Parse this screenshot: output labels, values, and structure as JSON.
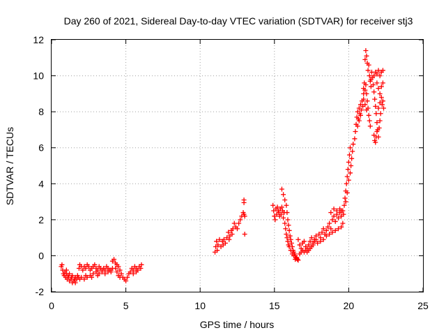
{
  "chart_data": {
    "type": "scatter",
    "title": "Day 260 of 2021, Sidereal Day-to-day VTEC variation (SDTVAR) for receiver stj3",
    "xlabel": "GPS time / hours",
    "ylabel": "SDTVAR / TECUs",
    "xlim": [
      0,
      25
    ],
    "ylim": [
      -2,
      12
    ],
    "xticks": [
      0,
      5,
      10,
      15,
      20,
      25
    ],
    "yticks": [
      -2,
      0,
      2,
      4,
      6,
      8,
      10,
      12
    ],
    "xtick_labels": [
      "0",
      "5",
      "10",
      "15",
      "20",
      "25"
    ],
    "ytick_labels": [
      "-2",
      "0",
      "2",
      "4",
      "6",
      "8",
      "10",
      "12"
    ],
    "grid": true,
    "marker": "+",
    "color": "#ff0000",
    "series": [
      {
        "name": "SDTVAR",
        "points": [
          [
            0.65,
            -0.6
          ],
          [
            0.7,
            -0.5
          ],
          [
            0.75,
            -0.8
          ],
          [
            0.8,
            -1.0
          ],
          [
            0.85,
            -1.1
          ],
          [
            0.9,
            -0.9
          ],
          [
            0.95,
            -1.2
          ],
          [
            1.0,
            -1.0
          ],
          [
            1.05,
            -1.3
          ],
          [
            1.1,
            -1.1
          ],
          [
            1.15,
            -1.2
          ],
          [
            1.2,
            -1.4
          ],
          [
            1.3,
            -1.3
          ],
          [
            1.35,
            -1.2
          ],
          [
            1.4,
            -1.5
          ],
          [
            1.5,
            -1.4
          ],
          [
            1.55,
            -1.3
          ],
          [
            1.6,
            -1.5
          ],
          [
            1.7,
            -1.3
          ],
          [
            1.75,
            -1.1
          ],
          [
            1.8,
            -1.2
          ],
          [
            1.9,
            -1.3
          ],
          [
            1.0,
            -0.8
          ],
          [
            1.2,
            -1.0
          ],
          [
            1.4,
            -1.1
          ],
          [
            1.6,
            -1.2
          ],
          [
            1.85,
            -0.7
          ],
          [
            1.9,
            -0.5
          ],
          [
            2.0,
            -0.6
          ],
          [
            2.1,
            -0.8
          ],
          [
            2.2,
            -0.6
          ],
          [
            2.3,
            -0.7
          ],
          [
            2.4,
            -0.5
          ],
          [
            2.5,
            -0.6
          ],
          [
            2.6,
            -0.8
          ],
          [
            2.7,
            -0.7
          ],
          [
            2.8,
            -0.6
          ],
          [
            2.9,
            -0.5
          ],
          [
            3.0,
            -0.7
          ],
          [
            3.1,
            -0.8
          ],
          [
            3.2,
            -0.6
          ],
          [
            3.3,
            -0.7
          ],
          [
            3.4,
            -0.8
          ],
          [
            3.5,
            -0.7
          ],
          [
            3.6,
            -0.8
          ],
          [
            3.7,
            -0.6
          ],
          [
            3.8,
            -0.7
          ],
          [
            3.9,
            -0.8
          ],
          [
            4.0,
            -0.9
          ],
          [
            4.1,
            -0.7
          ],
          [
            2.0,
            -1.2
          ],
          [
            2.2,
            -1.3
          ],
          [
            2.4,
            -1.2
          ],
          [
            2.6,
            -1.1
          ],
          [
            2.8,
            -1.0
          ],
          [
            3.0,
            -0.9
          ],
          [
            3.2,
            -1.0
          ],
          [
            3.4,
            -0.9
          ],
          [
            3.6,
            -1.0
          ],
          [
            3.8,
            -0.9
          ],
          [
            4.0,
            -0.8
          ],
          [
            2.3,
            -1.1
          ],
          [
            2.7,
            -1.2
          ],
          [
            3.1,
            -1.1
          ],
          [
            4.1,
            -0.3
          ],
          [
            4.2,
            -0.2
          ],
          [
            4.3,
            -0.4
          ],
          [
            4.4,
            -0.5
          ],
          [
            4.5,
            -0.6
          ],
          [
            4.6,
            -0.8
          ],
          [
            4.7,
            -1.0
          ],
          [
            4.8,
            -1.2
          ],
          [
            4.9,
            -1.3
          ],
          [
            5.0,
            -1.4
          ],
          [
            5.1,
            -1.2
          ],
          [
            5.2,
            -1.0
          ],
          [
            4.4,
            -0.9
          ],
          [
            4.5,
            -1.1
          ],
          [
            4.6,
            -1.2
          ],
          [
            4.3,
            -0.7
          ],
          [
            5.3,
            -0.9
          ],
          [
            5.4,
            -0.7
          ],
          [
            5.5,
            -0.8
          ],
          [
            5.6,
            -0.6
          ],
          [
            5.7,
            -0.7
          ],
          [
            5.8,
            -0.8
          ],
          [
            5.9,
            -0.6
          ],
          [
            6.0,
            -0.7
          ],
          [
            6.05,
            -0.5
          ],
          [
            5.5,
            -1.0
          ],
          [
            5.7,
            -0.9
          ],
          [
            11.0,
            0.2
          ],
          [
            11.05,
            0.5
          ],
          [
            11.1,
            0.8
          ],
          [
            11.15,
            0.3
          ],
          [
            11.2,
            0.6
          ],
          [
            11.3,
            0.9
          ],
          [
            11.4,
            0.5
          ],
          [
            11.5,
            0.8
          ],
          [
            11.55,
            0.6
          ],
          [
            11.6,
            0.9
          ],
          [
            11.7,
            0.7
          ],
          [
            11.8,
            1.0
          ],
          [
            11.9,
            1.3
          ],
          [
            12.0,
            1.1
          ],
          [
            12.1,
            1.4
          ],
          [
            12.2,
            1.5
          ],
          [
            12.3,
            1.8
          ],
          [
            12.4,
            1.6
          ],
          [
            11.95,
            0.9
          ],
          [
            12.15,
            1.2
          ],
          [
            12.5,
            1.5
          ],
          [
            12.6,
            1.8
          ],
          [
            12.7,
            2.0
          ],
          [
            12.8,
            2.2
          ],
          [
            12.9,
            2.4
          ],
          [
            12.95,
            2.3
          ],
          [
            12.95,
            3.1
          ],
          [
            12.95,
            2.95
          ],
          [
            13.0,
            1.2
          ],
          [
            13.0,
            2.2
          ],
          [
            14.9,
            2.8
          ],
          [
            14.95,
            2.5
          ],
          [
            15.0,
            2.2
          ],
          [
            15.05,
            2.0
          ],
          [
            15.1,
            2.6
          ],
          [
            15.15,
            2.3
          ],
          [
            15.2,
            2.7
          ],
          [
            15.25,
            2.5
          ],
          [
            15.3,
            2.4
          ],
          [
            15.35,
            2.2
          ],
          [
            15.4,
            2.6
          ],
          [
            15.45,
            2.3
          ],
          [
            15.5,
            2.7
          ],
          [
            15.55,
            2.5
          ],
          [
            15.6,
            2.1
          ],
          [
            15.65,
            2.4
          ],
          [
            15.5,
            3.7
          ],
          [
            15.6,
            3.4
          ],
          [
            15.7,
            3.1
          ],
          [
            15.8,
            2.8
          ],
          [
            15.85,
            2.4
          ],
          [
            15.9,
            2.0
          ],
          [
            15.95,
            1.7
          ],
          [
            16.0,
            1.4
          ],
          [
            16.05,
            1.1
          ],
          [
            16.1,
            0.9
          ],
          [
            16.15,
            0.7
          ],
          [
            16.2,
            0.5
          ],
          [
            16.25,
            0.3
          ],
          [
            16.3,
            0.2
          ],
          [
            16.35,
            0.1
          ],
          [
            16.4,
            0.0
          ],
          [
            16.45,
            -0.1
          ],
          [
            16.5,
            -0.15
          ],
          [
            16.55,
            -0.2
          ],
          [
            16.6,
            -0.25
          ],
          [
            15.7,
            1.8
          ],
          [
            15.75,
            1.5
          ],
          [
            15.8,
            1.2
          ],
          [
            15.85,
            1.0
          ],
          [
            15.9,
            0.8
          ],
          [
            15.95,
            0.6
          ],
          [
            16.0,
            0.5
          ],
          [
            16.1,
            0.3
          ],
          [
            16.2,
            0.1
          ],
          [
            16.3,
            0.0
          ],
          [
            16.4,
            -0.2
          ],
          [
            16.5,
            -0.1
          ],
          [
            16.6,
            0.9
          ],
          [
            16.7,
            0.6
          ],
          [
            16.8,
            0.4
          ],
          [
            16.9,
            0.7
          ],
          [
            17.0,
            0.8
          ],
          [
            17.1,
            0.5
          ],
          [
            17.2,
            0.4
          ],
          [
            17.3,
            0.6
          ],
          [
            17.4,
            0.8
          ],
          [
            17.5,
            1.0
          ],
          [
            17.6,
            0.7
          ],
          [
            17.7,
            0.9
          ],
          [
            17.8,
            1.1
          ],
          [
            16.7,
            0.1
          ],
          [
            16.8,
            0.2
          ],
          [
            16.9,
            0.3
          ],
          [
            17.0,
            0.2
          ],
          [
            17.1,
            0.3
          ],
          [
            17.2,
            0.2
          ],
          [
            17.3,
            0.3
          ],
          [
            17.4,
            0.4
          ],
          [
            17.5,
            0.5
          ],
          [
            17.6,
            0.6
          ],
          [
            17.7,
            0.8
          ],
          [
            17.8,
            0.9
          ],
          [
            17.9,
            0.7
          ],
          [
            18.0,
            1.2
          ],
          [
            18.1,
            1.0
          ],
          [
            18.2,
            1.3
          ],
          [
            18.3,
            1.5
          ],
          [
            18.4,
            1.2
          ],
          [
            18.5,
            1.4
          ],
          [
            18.6,
            1.6
          ],
          [
            18.7,
            1.8
          ],
          [
            18.8,
            1.5
          ],
          [
            18.9,
            2.0
          ],
          [
            19.0,
            2.2
          ],
          [
            19.1,
            1.9
          ],
          [
            19.2,
            2.3
          ],
          [
            19.3,
            2.1
          ],
          [
            19.4,
            2.4
          ],
          [
            19.5,
            2.2
          ],
          [
            19.6,
            2.5
          ],
          [
            19.65,
            2.3
          ],
          [
            18.1,
            0.8
          ],
          [
            18.3,
            0.9
          ],
          [
            18.5,
            1.1
          ],
          [
            18.7,
            1.2
          ],
          [
            18.9,
            1.3
          ],
          [
            19.1,
            1.4
          ],
          [
            19.3,
            1.5
          ],
          [
            19.5,
            1.6
          ],
          [
            19.6,
            1.8
          ],
          [
            18.8,
            2.4
          ],
          [
            19.0,
            2.6
          ],
          [
            19.2,
            2.5
          ],
          [
            19.4,
            2.6
          ],
          [
            19.5,
            2.5
          ],
          [
            19.7,
            2.8
          ],
          [
            19.75,
            3.2
          ],
          [
            19.8,
            3.6
          ],
          [
            19.85,
            4.0
          ],
          [
            19.9,
            4.4
          ],
          [
            19.95,
            4.8
          ],
          [
            20.0,
            5.2
          ],
          [
            20.05,
            5.6
          ],
          [
            20.1,
            6.0
          ],
          [
            19.8,
            3.0
          ],
          [
            19.9,
            3.5
          ],
          [
            20.0,
            4.2
          ],
          [
            20.1,
            4.6
          ],
          [
            20.15,
            5.0
          ],
          [
            20.2,
            5.4
          ],
          [
            20.25,
            5.8
          ],
          [
            20.3,
            6.2
          ],
          [
            20.4,
            6.5
          ],
          [
            20.45,
            6.9
          ],
          [
            20.5,
            7.3
          ],
          [
            20.55,
            7.7
          ],
          [
            20.6,
            8.0
          ],
          [
            20.65,
            7.6
          ],
          [
            20.7,
            8.2
          ],
          [
            20.75,
            7.9
          ],
          [
            20.8,
            8.4
          ],
          [
            20.85,
            8.1
          ],
          [
            20.9,
            8.6
          ],
          [
            20.95,
            8.3
          ],
          [
            21.0,
            9.0
          ],
          [
            20.6,
            7.2
          ],
          [
            20.7,
            7.5
          ],
          [
            20.8,
            7.8
          ],
          [
            21.0,
            9.3
          ],
          [
            21.05,
            9.6
          ],
          [
            21.1,
            9.2
          ],
          [
            21.15,
            9.5
          ],
          [
            21.2,
            9.0
          ],
          [
            21.25,
            8.6
          ],
          [
            21.3,
            8.2
          ],
          [
            21.35,
            7.8
          ],
          [
            21.4,
            7.5
          ],
          [
            21.45,
            7.2
          ],
          [
            21.0,
            8.7
          ],
          [
            21.1,
            8.4
          ],
          [
            21.2,
            8.1
          ],
          [
            21.1,
            10.9
          ],
          [
            21.15,
            11.4
          ],
          [
            21.2,
            11.1
          ],
          [
            21.25,
            10.7
          ],
          [
            21.3,
            10.3
          ],
          [
            21.35,
            10.6
          ],
          [
            21.4,
            10.0
          ],
          [
            21.45,
            9.7
          ],
          [
            21.5,
            9.4
          ],
          [
            21.5,
            9.8
          ],
          [
            21.55,
            10.2
          ],
          [
            21.6,
            9.9
          ],
          [
            21.65,
            9.5
          ],
          [
            21.7,
            9.1
          ],
          [
            21.75,
            8.7
          ],
          [
            21.8,
            8.3
          ],
          [
            21.85,
            7.9
          ],
          [
            21.9,
            7.4
          ],
          [
            21.95,
            7.0
          ],
          [
            22.0,
            6.6
          ],
          [
            21.7,
            6.7
          ],
          [
            21.75,
            6.4
          ],
          [
            21.8,
            6.3
          ],
          [
            21.85,
            6.6
          ],
          [
            22.05,
            7.1
          ],
          [
            22.1,
            7.5
          ],
          [
            21.9,
            6.9
          ],
          [
            21.7,
            10.0
          ],
          [
            21.8,
            10.2
          ],
          [
            21.9,
            10.1
          ],
          [
            22.0,
            10.3
          ],
          [
            22.1,
            10.0
          ],
          [
            22.2,
            10.2
          ],
          [
            22.3,
            10.3
          ],
          [
            21.9,
            9.6
          ],
          [
            22.0,
            9.3
          ],
          [
            22.1,
            9.0
          ],
          [
            22.2,
            9.4
          ],
          [
            22.3,
            9.6
          ],
          [
            22.2,
            8.8
          ],
          [
            22.3,
            8.6
          ],
          [
            22.35,
            8.2
          ],
          [
            22.1,
            8.5
          ],
          [
            22.25,
            8.4
          ],
          [
            22.0,
            8.2
          ],
          [
            22.15,
            7.9
          ]
        ]
      }
    ]
  }
}
